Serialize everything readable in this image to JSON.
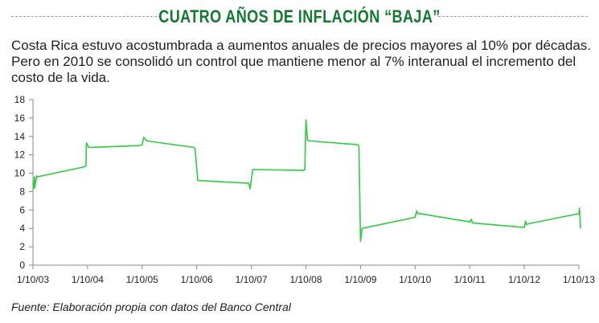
{
  "header": {
    "title": "CUATRO AÑOS DE INFLACIÓN “BAJA”",
    "subtitle": "Costa Rica estuvo acostumbrada a aumentos anuales de precios mayores al 10% por décadas. Pero en 2010 se consolidó un control que mantiene menor al 7% interanual el incremento del costo de la vida."
  },
  "footer": {
    "source": "Fuente: Elaboración propia con datos del Banco Central"
  },
  "colors": {
    "title": "#127a2e",
    "line": "#2ecc40"
  },
  "chart_data": {
    "type": "line",
    "title": "CUATRO AÑOS DE INFLACIÓN “BAJA”",
    "xlabel": "",
    "ylabel": "",
    "ylim": [
      0,
      18
    ],
    "yticks": [
      0,
      2,
      4,
      6,
      8,
      10,
      12,
      14,
      16,
      18
    ],
    "xlim": [
      2003,
      2013
    ],
    "xticks": [
      "1/10/03",
      "1/10/04",
      "1/10/05",
      "1/10/06",
      "1/10/07",
      "1/10/08",
      "1/10/09",
      "1/10/10",
      "1/10/11",
      "1/10/12",
      "1/10/13"
    ],
    "grid": false,
    "legend": "none",
    "series": [
      {
        "x": [
          2003.0,
          2003.03,
          2003.03,
          2003.07,
          2003.08,
          2003.95,
          2003.97,
          2003.98,
          2004.02,
          2004.05,
          2004.95,
          2005.0,
          2005.03,
          2005.07,
          2005.1,
          2005.95,
          2005.97,
          2005.99,
          2006.02,
          2006.05,
          2006.95,
          2006.98,
          2007.0,
          2007.03,
          2007.05,
          2007.95,
          2007.98,
          2008.0,
          2008.03,
          2008.06,
          2008.1,
          2008.95,
          2008.97,
          2009.0,
          2009.03,
          2010.0,
          2010.03,
          2010.05,
          2010.1,
          2011.0,
          2011.03,
          2011.05,
          2012.0,
          2012.02,
          2012.04,
          2012.07,
          2013.0,
          2013.01,
          2013.03
        ],
        "values": [
          8.2,
          9.6,
          8.4,
          9.7,
          9.6,
          10.7,
          10.8,
          13.3,
          12.8,
          12.8,
          13.0,
          13.1,
          13.9,
          13.6,
          13.5,
          12.8,
          12.6,
          11.2,
          9.2,
          9.2,
          8.9,
          8.3,
          9.4,
          10.4,
          10.4,
          10.3,
          10.4,
          15.8,
          13.6,
          13.5,
          13.5,
          13.1,
          12.9,
          2.6,
          4.0,
          5.2,
          5.9,
          5.6,
          5.6,
          4.7,
          5.0,
          4.6,
          4.1,
          4.8,
          4.4,
          4.5,
          5.6,
          6.2,
          4.0
        ]
      }
    ]
  }
}
